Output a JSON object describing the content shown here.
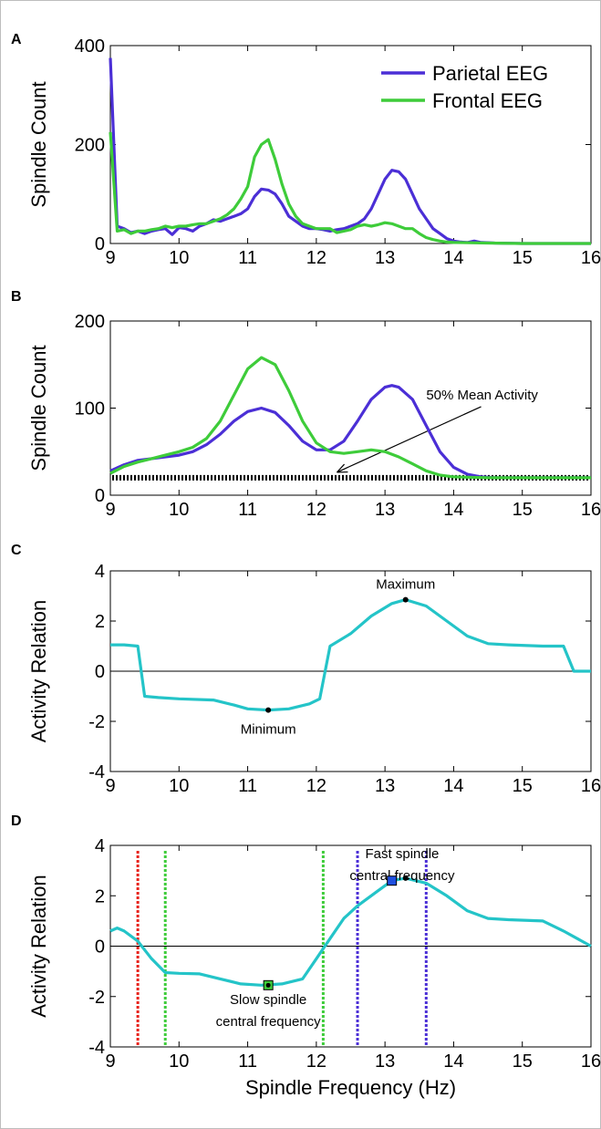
{
  "chart_data": [
    {
      "panel": "A",
      "type": "line",
      "ylabel": "Spindle Count",
      "xlim": [
        9,
        16
      ],
      "ylim": [
        0,
        400
      ],
      "xticks": [
        9,
        10,
        11,
        12,
        13,
        14,
        15,
        16
      ],
      "yticks": [
        0,
        200,
        400
      ],
      "legend": "top-right",
      "series": [
        {
          "name": "Parietal EEG",
          "color": "#4b2fd6",
          "points": [
            [
              9.0,
              375
            ],
            [
              9.1,
              35
            ],
            [
              9.2,
              30
            ],
            [
              9.3,
              22
            ],
            [
              9.4,
              25
            ],
            [
              9.5,
              20
            ],
            [
              9.6,
              25
            ],
            [
              9.7,
              28
            ],
            [
              9.8,
              30
            ],
            [
              9.9,
              18
            ],
            [
              10.0,
              32
            ],
            [
              10.1,
              30
            ],
            [
              10.2,
              25
            ],
            [
              10.3,
              35
            ],
            [
              10.4,
              40
            ],
            [
              10.5,
              48
            ],
            [
              10.6,
              45
            ],
            [
              10.7,
              50
            ],
            [
              10.8,
              55
            ],
            [
              10.9,
              60
            ],
            [
              11.0,
              70
            ],
            [
              11.1,
              95
            ],
            [
              11.2,
              110
            ],
            [
              11.3,
              108
            ],
            [
              11.4,
              100
            ],
            [
              11.5,
              80
            ],
            [
              11.6,
              55
            ],
            [
              11.7,
              45
            ],
            [
              11.8,
              35
            ],
            [
              11.9,
              30
            ],
            [
              12.0,
              30
            ],
            [
              12.1,
              28
            ],
            [
              12.2,
              25
            ],
            [
              12.3,
              28
            ],
            [
              12.4,
              30
            ],
            [
              12.5,
              35
            ],
            [
              12.6,
              40
            ],
            [
              12.7,
              50
            ],
            [
              12.8,
              70
            ],
            [
              12.9,
              100
            ],
            [
              13.0,
              130
            ],
            [
              13.1,
              148
            ],
            [
              13.2,
              145
            ],
            [
              13.3,
              130
            ],
            [
              13.4,
              100
            ],
            [
              13.5,
              70
            ],
            [
              13.6,
              50
            ],
            [
              13.7,
              30
            ],
            [
              13.8,
              20
            ],
            [
              13.9,
              10
            ],
            [
              14.0,
              5
            ],
            [
              14.1,
              3
            ],
            [
              14.2,
              2
            ],
            [
              14.3,
              5
            ],
            [
              14.4,
              2
            ],
            [
              14.6,
              1
            ],
            [
              15.0,
              0
            ],
            [
              15.5,
              0
            ],
            [
              16.0,
              0
            ]
          ]
        },
        {
          "name": "Frontal EEG",
          "color": "#3ecc3a",
          "points": [
            [
              9.0,
              225
            ],
            [
              9.1,
              25
            ],
            [
              9.2,
              28
            ],
            [
              9.3,
              20
            ],
            [
              9.4,
              25
            ],
            [
              9.5,
              25
            ],
            [
              9.6,
              28
            ],
            [
              9.7,
              30
            ],
            [
              9.8,
              35
            ],
            [
              9.9,
              32
            ],
            [
              10.0,
              35
            ],
            [
              10.1,
              35
            ],
            [
              10.2,
              38
            ],
            [
              10.3,
              40
            ],
            [
              10.4,
              40
            ],
            [
              10.5,
              45
            ],
            [
              10.6,
              50
            ],
            [
              10.7,
              58
            ],
            [
              10.8,
              70
            ],
            [
              10.9,
              90
            ],
            [
              11.0,
              115
            ],
            [
              11.1,
              175
            ],
            [
              11.2,
              200
            ],
            [
              11.3,
              210
            ],
            [
              11.4,
              170
            ],
            [
              11.5,
              120
            ],
            [
              11.6,
              80
            ],
            [
              11.7,
              55
            ],
            [
              11.8,
              40
            ],
            [
              11.9,
              35
            ],
            [
              12.0,
              30
            ],
            [
              12.1,
              30
            ],
            [
              12.2,
              30
            ],
            [
              12.3,
              22
            ],
            [
              12.4,
              25
            ],
            [
              12.5,
              28
            ],
            [
              12.6,
              35
            ],
            [
              12.7,
              38
            ],
            [
              12.8,
              35
            ],
            [
              12.9,
              38
            ],
            [
              13.0,
              42
            ],
            [
              13.1,
              40
            ],
            [
              13.2,
              35
            ],
            [
              13.3,
              30
            ],
            [
              13.4,
              30
            ],
            [
              13.5,
              20
            ],
            [
              13.6,
              12
            ],
            [
              13.7,
              8
            ],
            [
              13.8,
              5
            ],
            [
              13.9,
              3
            ],
            [
              14.0,
              2
            ],
            [
              14.5,
              1
            ],
            [
              15.0,
              0
            ],
            [
              15.5,
              0
            ],
            [
              16.0,
              0
            ]
          ]
        }
      ]
    },
    {
      "panel": "B",
      "type": "line",
      "ylabel": "Spindle Count",
      "xlim": [
        9,
        16
      ],
      "ylim": [
        0,
        200
      ],
      "xticks": [
        9,
        10,
        11,
        12,
        13,
        14,
        15,
        16
      ],
      "yticks": [
        0,
        100,
        200
      ],
      "threshold": {
        "y": 20,
        "label": "50% Mean Activity",
        "label_x": 13.6,
        "label_y": 110,
        "arrow_to_x": 12.3
      },
      "series": [
        {
          "name": "Parietal EEG",
          "color": "#4b2fd6",
          "points": [
            [
              9.0,
              28
            ],
            [
              9.2,
              35
            ],
            [
              9.4,
              40
            ],
            [
              9.6,
              42
            ],
            [
              9.8,
              44
            ],
            [
              10.0,
              46
            ],
            [
              10.2,
              50
            ],
            [
              10.4,
              58
            ],
            [
              10.6,
              70
            ],
            [
              10.8,
              85
            ],
            [
              11.0,
              96
            ],
            [
              11.2,
              100
            ],
            [
              11.4,
              95
            ],
            [
              11.6,
              80
            ],
            [
              11.8,
              62
            ],
            [
              12.0,
              52
            ],
            [
              12.2,
              52
            ],
            [
              12.4,
              62
            ],
            [
              12.6,
              85
            ],
            [
              12.8,
              110
            ],
            [
              13.0,
              124
            ],
            [
              13.1,
              126
            ],
            [
              13.2,
              124
            ],
            [
              13.4,
              110
            ],
            [
              13.6,
              80
            ],
            [
              13.8,
              50
            ],
            [
              14.0,
              32
            ],
            [
              14.2,
              24
            ],
            [
              14.4,
              21
            ],
            [
              14.6,
              20
            ],
            [
              15.0,
              20
            ],
            [
              16.0,
              20
            ]
          ]
        },
        {
          "name": "Frontal EEG",
          "color": "#3ecc3a",
          "points": [
            [
              9.0,
              25
            ],
            [
              9.2,
              33
            ],
            [
              9.4,
              38
            ],
            [
              9.6,
              42
            ],
            [
              9.8,
              46
            ],
            [
              10.0,
              50
            ],
            [
              10.2,
              55
            ],
            [
              10.4,
              65
            ],
            [
              10.6,
              85
            ],
            [
              10.8,
              115
            ],
            [
              11.0,
              145
            ],
            [
              11.2,
              158
            ],
            [
              11.4,
              150
            ],
            [
              11.6,
              120
            ],
            [
              11.8,
              85
            ],
            [
              12.0,
              60
            ],
            [
              12.2,
              50
            ],
            [
              12.4,
              48
            ],
            [
              12.6,
              50
            ],
            [
              12.8,
              52
            ],
            [
              13.0,
              50
            ],
            [
              13.2,
              44
            ],
            [
              13.4,
              36
            ],
            [
              13.6,
              28
            ],
            [
              13.8,
              23
            ],
            [
              14.0,
              21
            ],
            [
              14.5,
              20
            ],
            [
              16.0,
              20
            ]
          ]
        }
      ]
    },
    {
      "panel": "C",
      "type": "line",
      "ylabel": "Activity Relation",
      "xlim": [
        9,
        16
      ],
      "ylim": [
        -4,
        4
      ],
      "xticks": [
        9,
        10,
        11,
        12,
        13,
        14,
        15,
        16
      ],
      "yticks": [
        -4,
        -2,
        0,
        2,
        4
      ],
      "zero_line": true,
      "annotations": [
        {
          "label": "Maximum",
          "x": 13.3,
          "y": 2.85,
          "position": "above"
        },
        {
          "label": "Minimum",
          "x": 11.3,
          "y": -1.55,
          "position": "below"
        }
      ],
      "series": [
        {
          "color": "#24c4c8",
          "points": [
            [
              9.0,
              1.05
            ],
            [
              9.2,
              1.05
            ],
            [
              9.4,
              1.0
            ],
            [
              9.5,
              -1.0
            ],
            [
              9.7,
              -1.05
            ],
            [
              10.0,
              -1.1
            ],
            [
              10.5,
              -1.15
            ],
            [
              10.8,
              -1.35
            ],
            [
              11.0,
              -1.5
            ],
            [
              11.3,
              -1.55
            ],
            [
              11.6,
              -1.5
            ],
            [
              11.9,
              -1.3
            ],
            [
              12.05,
              -1.1
            ],
            [
              12.2,
              1.0
            ],
            [
              12.5,
              1.5
            ],
            [
              12.8,
              2.2
            ],
            [
              13.1,
              2.7
            ],
            [
              13.3,
              2.85
            ],
            [
              13.6,
              2.6
            ],
            [
              13.9,
              2.0
            ],
            [
              14.2,
              1.4
            ],
            [
              14.5,
              1.1
            ],
            [
              14.8,
              1.05
            ],
            [
              15.3,
              1.0
            ],
            [
              15.6,
              1.0
            ],
            [
              15.75,
              0.0
            ],
            [
              16.0,
              0.0
            ]
          ]
        }
      ]
    },
    {
      "panel": "D",
      "type": "line",
      "ylabel": "Activity Relation",
      "xlabel": "Spindle Frequency (Hz)",
      "xlim": [
        9,
        16
      ],
      "ylim": [
        -4,
        4
      ],
      "xticks": [
        9,
        10,
        11,
        12,
        13,
        14,
        15,
        16
      ],
      "yticks": [
        -4,
        -2,
        0,
        2,
        4
      ],
      "zero_line": true,
      "vlines": [
        {
          "x": 9.4,
          "color": "#e8231c"
        },
        {
          "x": 9.8,
          "color": "#3ecc3a"
        },
        {
          "x": 12.1,
          "color": "#3ecc3a"
        },
        {
          "x": 12.6,
          "color": "#4b2fd6"
        },
        {
          "x": 13.6,
          "color": "#4b2fd6"
        }
      ],
      "markers": [
        {
          "x": 11.3,
          "y": -1.55,
          "shape": "square",
          "color": "#3ecc3a"
        },
        {
          "x": 13.1,
          "y": 2.6,
          "shape": "square",
          "color": "#1f4fe0"
        },
        {
          "x": 13.3,
          "y": 2.7,
          "shape": "dot",
          "color": "#000000"
        }
      ],
      "annotations": [
        {
          "lines": [
            "Fast spindle",
            "central frequency"
          ],
          "x": 13.25,
          "y": 3.5
        },
        {
          "lines": [
            "Slow spindle",
            "central frequency"
          ],
          "x": 11.3,
          "y": -2.3
        }
      ],
      "series": [
        {
          "color": "#24c4c8",
          "points": [
            [
              9.0,
              0.6
            ],
            [
              9.1,
              0.72
            ],
            [
              9.2,
              0.6
            ],
            [
              9.4,
              0.2
            ],
            [
              9.6,
              -0.5
            ],
            [
              9.8,
              -1.05
            ],
            [
              10.0,
              -1.08
            ],
            [
              10.3,
              -1.1
            ],
            [
              10.6,
              -1.3
            ],
            [
              10.9,
              -1.5
            ],
            [
              11.2,
              -1.55
            ],
            [
              11.5,
              -1.5
            ],
            [
              11.8,
              -1.3
            ],
            [
              12.0,
              -0.5
            ],
            [
              12.2,
              0.3
            ],
            [
              12.4,
              1.1
            ],
            [
              12.6,
              1.6
            ],
            [
              12.9,
              2.2
            ],
            [
              13.1,
              2.6
            ],
            [
              13.3,
              2.7
            ],
            [
              13.6,
              2.5
            ],
            [
              13.9,
              2.0
            ],
            [
              14.2,
              1.4
            ],
            [
              14.5,
              1.1
            ],
            [
              14.8,
              1.05
            ],
            [
              15.3,
              1.0
            ],
            [
              15.6,
              0.6
            ],
            [
              16.0,
              0.0
            ]
          ]
        }
      ]
    }
  ],
  "panel_labels": [
    "A",
    "B",
    "C",
    "D"
  ]
}
